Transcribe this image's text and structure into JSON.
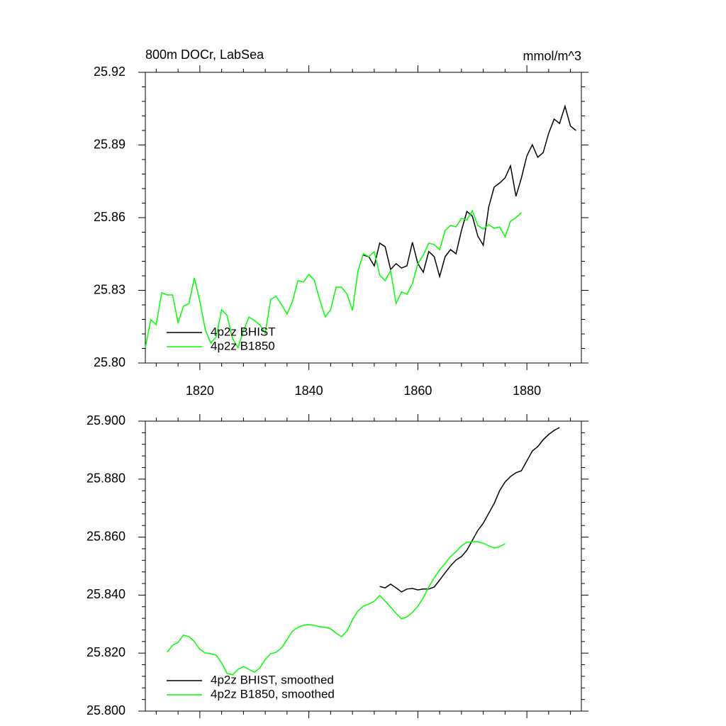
{
  "chart_data": [
    {
      "type": "line",
      "title": "800m DOCr, LabSea",
      "units_label": "mmol/m^3",
      "x": [
        1810,
        1811,
        1812,
        1813,
        1814,
        1815,
        1816,
        1817,
        1818,
        1819,
        1820,
        1821,
        1822,
        1823,
        1824,
        1825,
        1826,
        1827,
        1828,
        1829,
        1830,
        1831,
        1832,
        1833,
        1834,
        1835,
        1836,
        1837,
        1838,
        1839,
        1840,
        1841,
        1842,
        1843,
        1844,
        1845,
        1846,
        1847,
        1848,
        1849,
        1850,
        1851,
        1852,
        1853,
        1854,
        1855,
        1856,
        1857,
        1858,
        1859,
        1860,
        1861,
        1862,
        1863,
        1864,
        1865,
        1866,
        1867,
        1868,
        1869,
        1870,
        1871,
        1872,
        1873,
        1874,
        1875,
        1876,
        1877,
        1878,
        1879,
        1880,
        1881,
        1882,
        1883,
        1884,
        1885,
        1886,
        1887,
        1888,
        1889
      ],
      "series": [
        {
          "name": "4p2z BHIST",
          "color": "#000000",
          "values": [
            null,
            null,
            null,
            null,
            null,
            null,
            null,
            null,
            null,
            null,
            null,
            null,
            null,
            null,
            null,
            null,
            null,
            null,
            null,
            null,
            null,
            null,
            null,
            null,
            null,
            null,
            null,
            null,
            null,
            null,
            null,
            null,
            null,
            null,
            null,
            null,
            null,
            null,
            null,
            null,
            25.8445,
            25.8439,
            25.8401,
            25.8495,
            25.848,
            25.8386,
            25.841,
            25.8392,
            25.8401,
            25.8498,
            25.841,
            25.8375,
            25.846,
            25.8439,
            25.8357,
            25.8439,
            25.8468,
            25.8451,
            25.8547,
            25.8626,
            25.8606,
            25.8524,
            25.8486,
            25.8644,
            25.8726,
            25.8743,
            25.8764,
            25.8814,
            25.8688,
            25.8764,
            25.8855,
            25.8901,
            25.8849,
            25.8869,
            25.8948,
            25.9007,
            25.8989,
            25.906,
            25.8978,
            25.896
          ]
        },
        {
          "name": "4p2z B1850",
          "color": "#00ff00",
          "values": [
            25.8064,
            25.8179,
            25.8158,
            25.829,
            25.8281,
            25.8281,
            25.8167,
            25.8234,
            25.8246,
            25.8351,
            25.8255,
            25.8138,
            25.8082,
            25.8108,
            25.822,
            25.8196,
            25.81,
            25.8064,
            25.8132,
            25.819,
            25.8176,
            25.8158,
            25.8123,
            25.8263,
            25.8275,
            25.824,
            25.8202,
            25.8255,
            25.834,
            25.8334,
            25.8366,
            25.8342,
            25.8261,
            25.819,
            25.822,
            25.8313,
            25.8313,
            25.8284,
            25.8217,
            25.8378,
            25.8451,
            25.8439,
            25.846,
            25.8363,
            25.834,
            25.8381,
            25.8246,
            25.8293,
            25.8284,
            25.8328,
            25.841,
            25.8445,
            25.8495,
            25.8489,
            25.8468,
            25.8547,
            25.8568,
            25.8562,
            25.8597,
            25.8591,
            25.8629,
            25.8568,
            25.8553,
            25.8571,
            25.8556,
            25.8562,
            25.8521,
            25.8585,
            25.86,
            25.8621,
            null,
            null,
            null,
            null,
            null,
            null,
            null,
            null,
            null,
            null
          ]
        }
      ],
      "xlim": [
        1810,
        1890
      ],
      "xticks": [
        1820,
        1840,
        1860,
        1880
      ],
      "ylim": [
        25.8,
        25.92
      ],
      "yticks": [
        {
          "value": 25.8,
          "label": "25.80"
        },
        25.83,
        25.86,
        25.89,
        25.92
      ],
      "x_tick_labels": true
    },
    {
      "type": "line",
      "x": [
        1814,
        1815,
        1816,
        1817,
        1818,
        1819,
        1820,
        1821,
        1822,
        1823,
        1824,
        1825,
        1826,
        1827,
        1828,
        1829,
        1830,
        1831,
        1832,
        1833,
        1834,
        1835,
        1836,
        1837,
        1838,
        1839,
        1840,
        1841,
        1842,
        1843,
        1844,
        1845,
        1846,
        1847,
        1848,
        1849,
        1850,
        1851,
        1852,
        1853,
        1854,
        1855,
        1856,
        1857,
        1858,
        1859,
        1860,
        1861,
        1862,
        1863,
        1864,
        1865,
        1866,
        1867,
        1868,
        1869,
        1870,
        1871,
        1872,
        1873,
        1874,
        1875,
        1876,
        1877,
        1878,
        1879,
        1880,
        1881,
        1882,
        1883,
        1884,
        1885,
        1886
      ],
      "series": [
        {
          "name": "4p2z BHIST, smoothed",
          "color": "#000000",
          "values": [
            null,
            null,
            null,
            null,
            null,
            null,
            null,
            null,
            null,
            null,
            null,
            null,
            null,
            null,
            null,
            null,
            null,
            null,
            null,
            null,
            null,
            null,
            null,
            null,
            null,
            null,
            null,
            null,
            null,
            null,
            null,
            null,
            null,
            null,
            null,
            null,
            null,
            null,
            null,
            25.843,
            25.8425,
            25.8438,
            25.8425,
            25.8411,
            25.8421,
            25.8423,
            25.8418,
            25.8421,
            25.8421,
            25.8428,
            25.8452,
            25.8477,
            25.8501,
            25.8521,
            25.8533,
            25.8555,
            25.8589,
            25.8623,
            25.8648,
            25.8682,
            25.8716,
            25.876,
            25.879,
            25.8809,
            25.8822,
            25.8829,
            25.8863,
            25.8897,
            25.8912,
            25.8936,
            25.8954,
            25.8968,
            25.8978
          ]
        },
        {
          "name": "4p2z B1850, smoothed",
          "color": "#00ff00",
          "values": [
            25.8203,
            25.8227,
            25.8237,
            25.8262,
            25.8257,
            25.824,
            25.8213,
            25.82,
            25.8198,
            25.8193,
            25.8166,
            25.813,
            25.8125,
            25.8144,
            25.8154,
            25.8144,
            25.8134,
            25.8149,
            25.8178,
            25.8198,
            25.8203,
            25.8218,
            25.8247,
            25.8276,
            25.8289,
            25.8296,
            25.8298,
            25.8296,
            25.8291,
            25.8289,
            25.8284,
            25.8269,
            25.8257,
            25.8276,
            25.8315,
            25.8345,
            25.8362,
            25.8369,
            25.8379,
            25.8399,
            25.8379,
            25.8359,
            25.8337,
            25.8318,
            25.8325,
            25.834,
            25.8362,
            25.8391,
            25.8428,
            25.846,
            25.8487,
            25.8509,
            25.8533,
            25.855,
            25.857,
            25.8582,
            25.8584,
            25.8584,
            25.8579,
            25.857,
            25.8562,
            25.8567,
            25.8577,
            null,
            null,
            null,
            null,
            null,
            null,
            null,
            null,
            null,
            null
          ]
        }
      ],
      "xlim": [
        1810,
        1890
      ],
      "xticks": [
        1820,
        1840,
        1860,
        1880
      ],
      "ylim": [
        25.8,
        25.9
      ],
      "yticks": [
        {
          "value": 25.8,
          "label": "25.800"
        },
        {
          "value": 25.82,
          "label": "25.820"
        },
        {
          "value": 25.84,
          "label": "25.840"
        },
        {
          "value": 25.86,
          "label": "25.860"
        },
        {
          "value": 25.88,
          "label": "25.880"
        },
        {
          "value": 25.9,
          "label": "25.900"
        }
      ],
      "x_tick_labels": false
    }
  ]
}
